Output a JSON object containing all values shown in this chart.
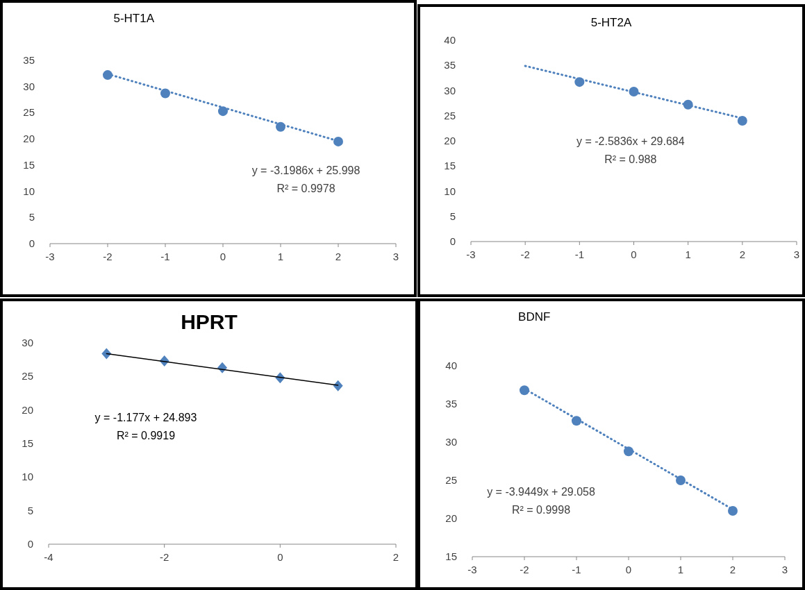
{
  "chart_data": [
    {
      "type": "scatter",
      "title": "5-HT1A",
      "xlim": [
        -3,
        3
      ],
      "xticks": [
        -3,
        -2,
        -1,
        0,
        1,
        2,
        3
      ],
      "ylim": [
        0,
        35
      ],
      "yticks": [
        0,
        5,
        10,
        15,
        20,
        25,
        30,
        35
      ],
      "marker": "circle",
      "series": [
        {
          "color": "#4f81bd",
          "x": [
            -2,
            -1,
            0,
            1,
            2
          ],
          "values": [
            32.2,
            28.7,
            25.3,
            22.3,
            19.5
          ]
        },
        {
          "type": "line",
          "color": "#4f81bd",
          "line_style": "dotted",
          "marker": "none",
          "x": [
            -2,
            2
          ],
          "values": [
            32.4,
            19.6
          ]
        }
      ],
      "annotations": [
        "y = -3.1986x + 25.998",
        "R² = 0.9978"
      ]
    },
    {
      "type": "scatter",
      "title": "5-HT2A",
      "xlim": [
        -3,
        3
      ],
      "xticks": [
        -3,
        -2,
        -1,
        0,
        1,
        2,
        3
      ],
      "ylim": [
        0,
        40
      ],
      "yticks": [
        0,
        5,
        10,
        15,
        20,
        25,
        30,
        35,
        40
      ],
      "marker": "circle",
      "series": [
        {
          "color": "#4f81bd",
          "x": [
            -1,
            0,
            1,
            2
          ],
          "values": [
            31.7,
            29.8,
            27.2,
            24.0
          ]
        },
        {
          "type": "line",
          "color": "#4f81bd",
          "line_style": "dotted",
          "marker": "none",
          "x": [
            -2,
            2
          ],
          "values": [
            34.9,
            24.5
          ]
        }
      ],
      "annotations": [
        "y = -2.5836x + 29.684",
        "R² = 0.988"
      ]
    },
    {
      "type": "scatter",
      "title": "HPRT",
      "xlim": [
        -4,
        2
      ],
      "xticks": [
        -4,
        -2,
        0,
        2
      ],
      "ylim": [
        0,
        30
      ],
      "yticks": [
        0,
        5,
        10,
        15,
        20,
        25,
        30
      ],
      "marker": "diamond",
      "series": [
        {
          "color": "#4f81bd",
          "x": [
            -3,
            -2,
            -1,
            0,
            1
          ],
          "values": [
            28.4,
            27.3,
            26.3,
            24.8,
            23.6
          ]
        },
        {
          "type": "line",
          "color": "#000000",
          "line_style": "solid",
          "marker": "none",
          "x": [
            -3,
            1
          ],
          "values": [
            28.4,
            23.7
          ]
        }
      ],
      "annotations": [
        "y = -1.177x + 24.893",
        "R² = 0.9919"
      ]
    },
    {
      "type": "scatter",
      "title": "BDNF",
      "xlim": [
        -3,
        3
      ],
      "xticks": [
        -3,
        -2,
        -1,
        0,
        1,
        2,
        3
      ],
      "ylim": [
        15,
        40
      ],
      "yticks": [
        15,
        20,
        25,
        30,
        35,
        40
      ],
      "marker": "circle",
      "series": [
        {
          "color": "#4f81bd",
          "x": [
            -2,
            -1,
            0,
            1,
            2
          ],
          "values": [
            36.8,
            32.8,
            28.8,
            25.0,
            21.0
          ]
        },
        {
          "type": "line",
          "color": "#4f81bd",
          "line_style": "dotted",
          "marker": "none",
          "x": [
            -2,
            2
          ],
          "values": [
            37.0,
            21.2
          ]
        }
      ],
      "annotations": [
        "y = -3.9449x + 29.058",
        "R² = 0.9998"
      ]
    }
  ]
}
